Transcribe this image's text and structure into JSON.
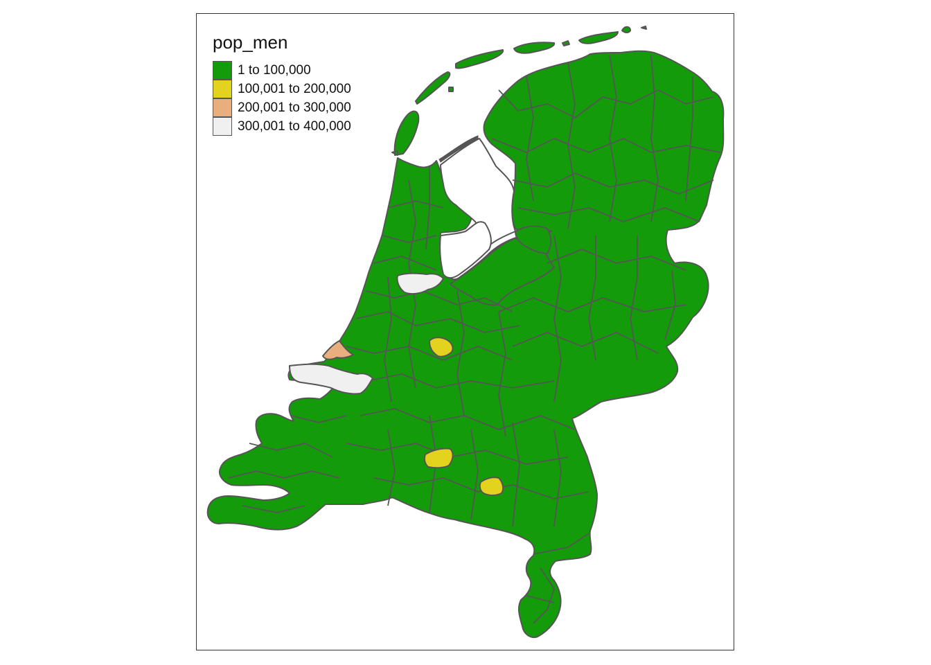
{
  "legend": {
    "title": "pop_men",
    "classes": [
      {
        "label": "1 to 100,000",
        "color": "#139b09"
      },
      {
        "label": "100,001 to 200,000",
        "color": "#e3d21e"
      },
      {
        "label": "200,001 to 300,000",
        "color": "#e9ae7d"
      },
      {
        "label": "300,001 to 400,000",
        "color": "#f0f0f0"
      }
    ]
  },
  "colors": {
    "border": "#555555",
    "frame": "#333333",
    "background": "#ffffff"
  }
}
